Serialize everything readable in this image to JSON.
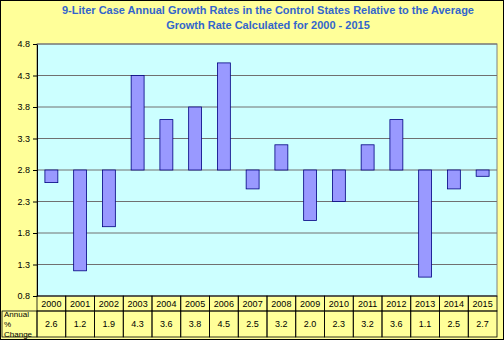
{
  "chart_data": {
    "type": "bar",
    "title": "9-Liter Case Annual Growth Rates in the Control States Relative to the Average Growth Rate Calculated for 2000 - 2015",
    "categories": [
      "2000",
      "2001",
      "2002",
      "2003",
      "2004",
      "2005",
      "2006",
      "2007",
      "2008",
      "2009",
      "2010",
      "2011",
      "2012",
      "2013",
      "2014",
      "2015"
    ],
    "values": [
      2.6,
      1.2,
      1.9,
      4.3,
      3.6,
      3.8,
      4.5,
      2.5,
      3.2,
      2.0,
      2.3,
      3.2,
      3.6,
      1.1,
      2.5,
      2.7
    ],
    "value_labels": [
      "2.6",
      "1.2",
      "1.9",
      "4.3",
      "3.6",
      "3.8",
      "4.5",
      "2.5",
      "3.2",
      "2.0",
      "2.3",
      "3.2",
      "3.6",
      "1.1",
      "2.5",
      "2.7"
    ],
    "baseline": 2.8,
    "table_label": "Annual % Change",
    "color": "#9999ff",
    "ylim": [
      0.8,
      4.8
    ],
    "yticks": [
      0.8,
      1.3,
      1.8,
      2.3,
      2.8,
      3.3,
      3.8,
      4.3,
      4.8
    ],
    "grid": true,
    "data_labels": true
  }
}
